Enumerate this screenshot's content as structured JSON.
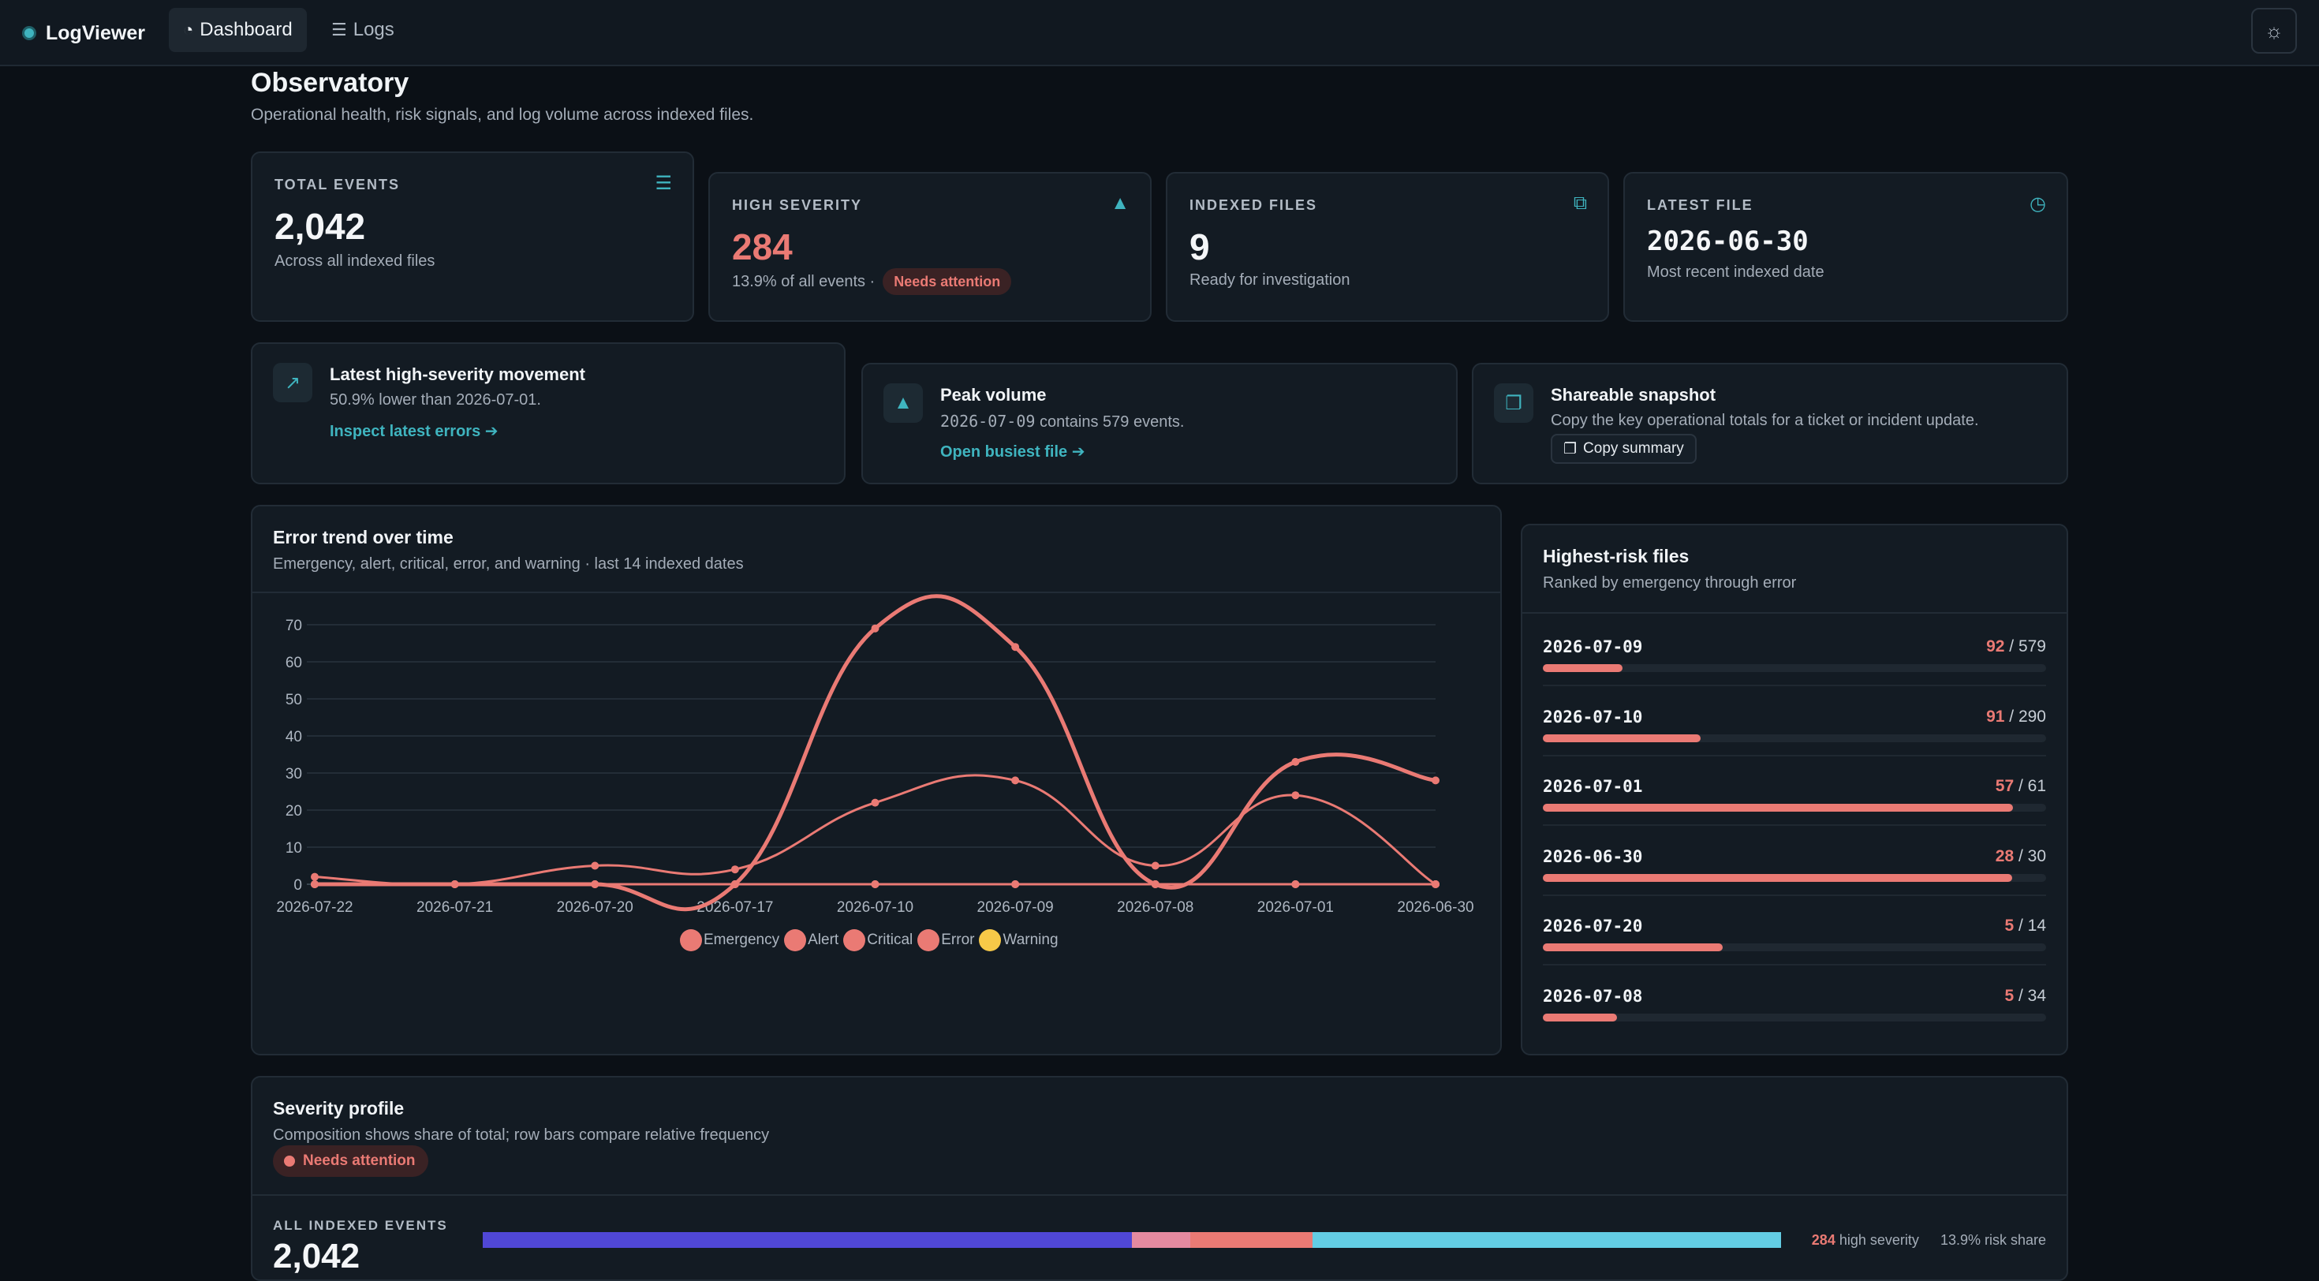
{
  "nav": {
    "brand": "LogViewer",
    "tabs": [
      {
        "label": "Dashboard",
        "icon": "gauge-icon",
        "active": true
      },
      {
        "label": "Logs",
        "icon": "list-icon",
        "active": false
      }
    ],
    "theme_icon": "theme-toggle-icon"
  },
  "header": {
    "title": "Observatory",
    "subtitle": "Operational health, risk signals, and log volume across indexed files."
  },
  "stats": [
    {
      "label": "TOTAL EVENTS",
      "value": "2,042",
      "note": "Across all indexed files",
      "icon": "database-icon"
    },
    {
      "label": "HIGH SEVERITY",
      "value": "284",
      "note": "13.9% of all events ·",
      "badge": "Needs attention",
      "icon": "warning-icon"
    },
    {
      "label": "INDEXED FILES",
      "value": "9",
      "note": "Ready for investigation",
      "icon": "files-icon"
    },
    {
      "label": "LATEST FILE",
      "value": "2026-06-30",
      "note": "Most recent indexed date",
      "icon": "clock-icon"
    }
  ],
  "insights": [
    {
      "title": "Latest high-severity movement",
      "text": "50.9% lower than 2026-07-01.",
      "link": "Inspect latest errors",
      "icon": "trend-icon"
    },
    {
      "title": "Peak volume",
      "text_date": "2026-07-09",
      "text": "contains 579 events.",
      "link": "Open busiest file",
      "icon": "area-chart-icon"
    },
    {
      "title": "Shareable snapshot",
      "text": "Copy the key operational totals for a ticket or incident update.",
      "button": "Copy summary",
      "icon": "clipboard-icon"
    }
  ],
  "trend": {
    "title": "Error trend over time",
    "subtitle": "Emergency, alert, critical, error, and warning · last 14 indexed dates"
  },
  "chart_data": {
    "type": "line",
    "categories": [
      "2026-07-22",
      "2026-07-21",
      "2026-07-20",
      "2026-07-17",
      "2026-07-10",
      "2026-07-09",
      "2026-07-08",
      "2026-07-01",
      "2026-06-30"
    ],
    "ylim": [
      0,
      70
    ],
    "yticks": [
      0,
      10,
      20,
      30,
      40,
      50,
      60,
      70
    ],
    "grid": true,
    "legend_placement": "bottom",
    "series": [
      {
        "name": "Emergency",
        "color": "#ea7a74",
        "values": [
          0,
          0,
          0,
          0,
          0,
          0,
          0,
          0,
          0
        ]
      },
      {
        "name": "Alert",
        "color": "#ea7a74",
        "values": [
          0,
          0,
          0,
          0,
          0,
          0,
          0,
          0,
          0
        ]
      },
      {
        "name": "Critical",
        "color": "#ea7a74",
        "values": [
          0,
          0,
          0,
          0,
          0,
          0,
          0,
          0,
          0
        ]
      },
      {
        "name": "Error",
        "color": "#ea7a74",
        "values": [
          0,
          0,
          0,
          0,
          69,
          64,
          0,
          33,
          28
        ]
      },
      {
        "name": "Warning",
        "color": "#f7c948",
        "values": [
          2,
          0,
          5,
          4,
          22,
          28,
          5,
          24,
          0
        ]
      }
    ]
  },
  "risk": {
    "title": "Highest-risk files",
    "subtitle": "Ranked by emergency through error",
    "rows": [
      {
        "date": "2026-07-09",
        "high": "92",
        "total": "579",
        "fraction": 0.159
      },
      {
        "date": "2026-07-10",
        "high": "91",
        "total": "290",
        "fraction": 0.314
      },
      {
        "date": "2026-07-01",
        "high": "57",
        "total": "61",
        "fraction": 0.934
      },
      {
        "date": "2026-06-30",
        "high": "28",
        "total": "30",
        "fraction": 0.933
      },
      {
        "date": "2026-07-20",
        "high": "5",
        "total": "14",
        "fraction": 0.357
      },
      {
        "date": "2026-07-08",
        "high": "5",
        "total": "34",
        "fraction": 0.147
      }
    ]
  },
  "severity": {
    "title": "Severity profile",
    "subtitle": "Composition shows share of total; row bars compare relative frequency",
    "badge": "Needs attention",
    "all_label": "ALL INDEXED EVENTS",
    "total": "2,042",
    "high_count": "284",
    "high_label": "high severity",
    "risk_share": "13.9% risk share",
    "composition": [
      {
        "share": 0.5,
        "color": "#5047d6"
      },
      {
        "share": 0.045,
        "color": "#e58aa0"
      },
      {
        "share": 0.094,
        "color": "#ea7a74"
      },
      {
        "share": 0.361,
        "color": "#63cde4"
      }
    ]
  }
}
